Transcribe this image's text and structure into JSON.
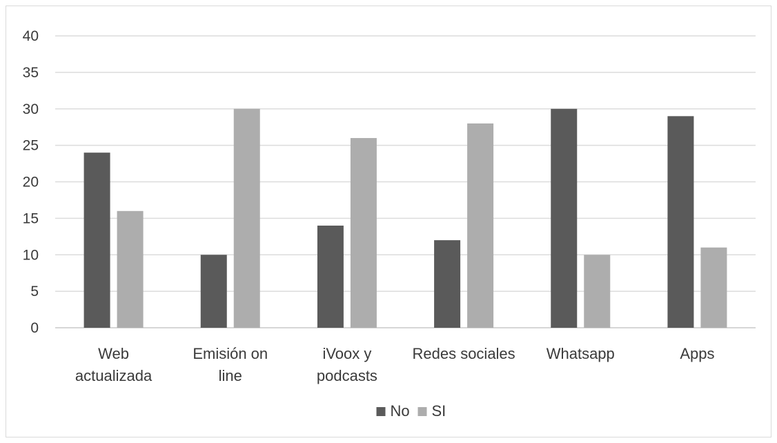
{
  "chart_data": {
    "type": "bar",
    "categories": [
      [
        "Web",
        "actualizada"
      ],
      [
        "Emisión on",
        "line"
      ],
      [
        "iVoox y",
        "podcasts"
      ],
      [
        "Redes sociales"
      ],
      [
        "Whatsapp"
      ],
      [
        "Apps"
      ]
    ],
    "series": [
      {
        "name": "No",
        "color": "#5a5a5a",
        "values": [
          24,
          10,
          14,
          12,
          30,
          29
        ]
      },
      {
        "name": "SI",
        "color": "#adadad",
        "values": [
          16,
          30,
          26,
          28,
          10,
          11
        ]
      }
    ],
    "ylim": [
      0,
      40
    ],
    "yticks": [
      0,
      5,
      10,
      15,
      20,
      25,
      30,
      35,
      40
    ],
    "grid": true,
    "legend": "bottom-center"
  }
}
